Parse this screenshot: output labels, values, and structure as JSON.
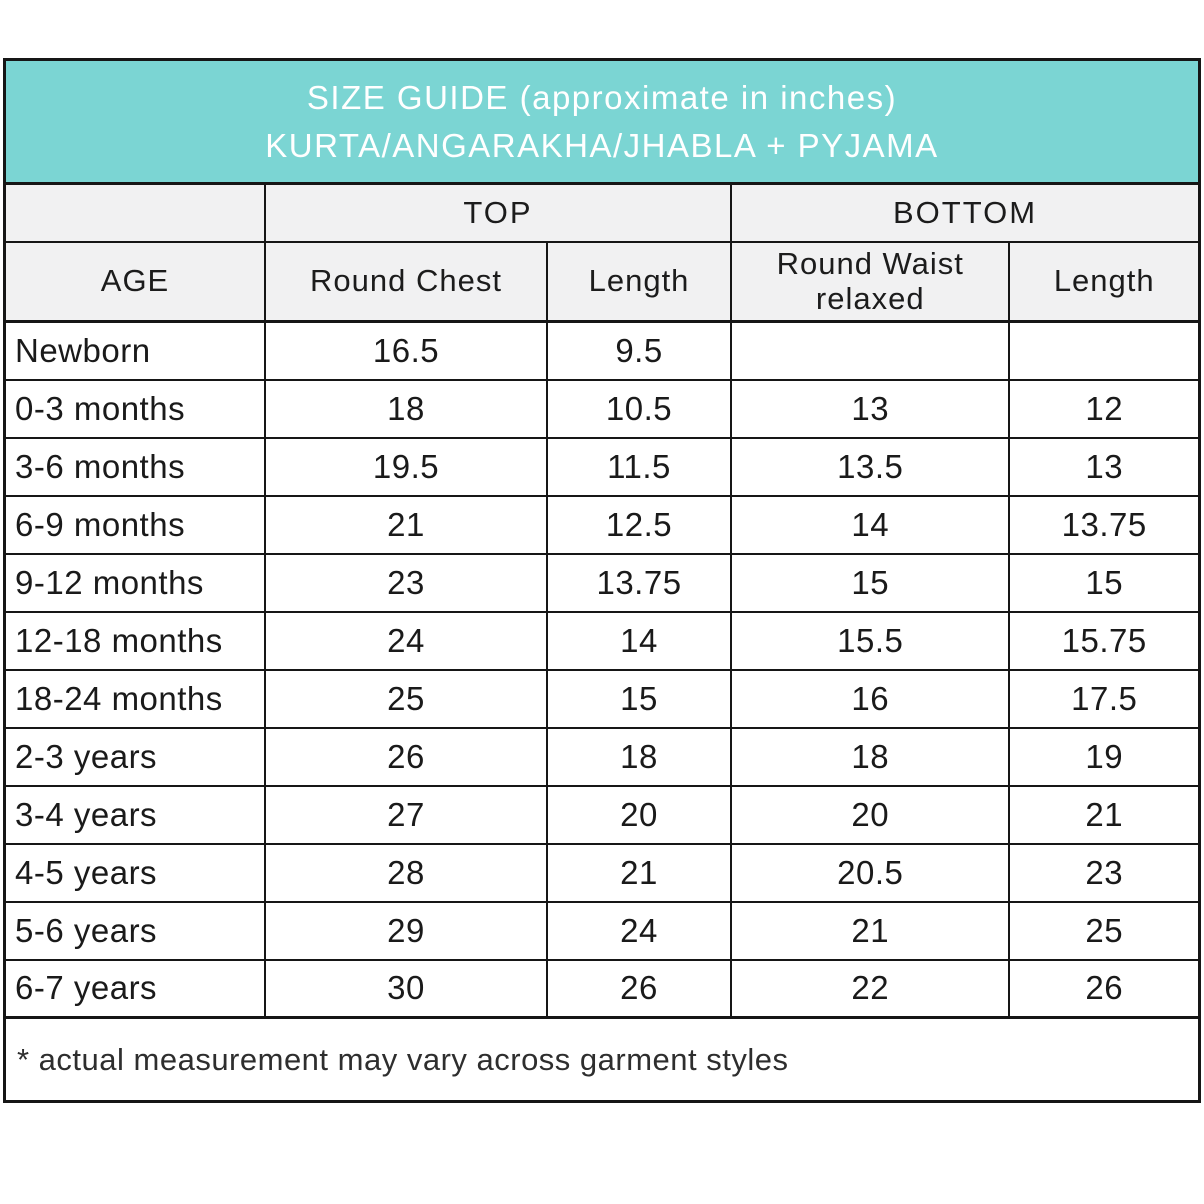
{
  "banner": {
    "line1": "SIZE GUIDE (approximate in inches)",
    "line2": "KURTA/ANGARAKHA/JHABLA + PYJAMA",
    "background_color": "#7bd5d3",
    "text_color": "#ffffff"
  },
  "table": {
    "group_headers": {
      "top": "TOP",
      "bottom": "BOTTOM"
    },
    "column_headers": [
      "AGE",
      "Round Chest",
      "Length",
      "Round Waist relaxed",
      "Length"
    ],
    "rows": [
      {
        "age": "Newborn",
        "values": [
          "16.5",
          "9.5",
          "",
          ""
        ]
      },
      {
        "age": "0-3 months",
        "values": [
          "18",
          "10.5",
          "13",
          "12"
        ]
      },
      {
        "age": "3-6 months",
        "values": [
          "19.5",
          "11.5",
          "13.5",
          "13"
        ]
      },
      {
        "age": "6-9 months",
        "values": [
          "21",
          "12.5",
          "14",
          "13.75"
        ]
      },
      {
        "age": "9-12 months",
        "values": [
          "23",
          "13.75",
          "15",
          "15"
        ]
      },
      {
        "age": "12-18 months",
        "values": [
          "24",
          "14",
          "15.5",
          "15.75"
        ]
      },
      {
        "age": "18-24 months",
        "values": [
          "25",
          "15",
          "16",
          "17.5"
        ]
      },
      {
        "age": "2-3 years",
        "values": [
          "26",
          "18",
          "18",
          "19"
        ]
      },
      {
        "age": "3-4 years",
        "values": [
          "27",
          "20",
          "20",
          "21"
        ]
      },
      {
        "age": "4-5 years",
        "values": [
          "28",
          "21",
          "20.5",
          "23"
        ]
      },
      {
        "age": "5-6 years",
        "values": [
          "29",
          "24",
          "21",
          "25"
        ]
      },
      {
        "age": "6-7 years",
        "values": [
          "30",
          "26",
          "22",
          "26"
        ]
      }
    ]
  },
  "footnote": "* actual measurement may vary across garment styles",
  "colors": {
    "banner_teal": "#7bd5d3",
    "header_gray": "#f1f1f2",
    "border_black": "#161616",
    "background_white": "#ffffff"
  },
  "chart_data": {
    "type": "table",
    "title": "SIZE GUIDE (approximate in inches) KURTA/ANGARAKHA/JHABLA + PYJAMA",
    "column_groups": [
      {
        "label": "",
        "columns": [
          "AGE"
        ]
      },
      {
        "label": "TOP",
        "columns": [
          "Round Chest",
          "Length"
        ]
      },
      {
        "label": "BOTTOM",
        "columns": [
          "Round Waist relaxed",
          "Length"
        ]
      }
    ],
    "columns": [
      "AGE",
      "TOP Round Chest",
      "TOP Length",
      "BOTTOM Round Waist relaxed",
      "BOTTOM Length"
    ],
    "rows": [
      [
        "Newborn",
        16.5,
        9.5,
        null,
        null
      ],
      [
        "0-3 months",
        18,
        10.5,
        13,
        12
      ],
      [
        "3-6 months",
        19.5,
        11.5,
        13.5,
        13
      ],
      [
        "6-9 months",
        21,
        12.5,
        14,
        13.75
      ],
      [
        "9-12 months",
        23,
        13.75,
        15,
        15
      ],
      [
        "12-18 months",
        24,
        14,
        15.5,
        15.75
      ],
      [
        "18-24 months",
        25,
        15,
        16,
        17.5
      ],
      [
        "2-3 years",
        26,
        18,
        18,
        19
      ],
      [
        "3-4 years",
        27,
        20,
        20,
        21
      ],
      [
        "4-5 years",
        28,
        21,
        20.5,
        23
      ],
      [
        "5-6 years",
        29,
        24,
        21,
        25
      ],
      [
        "6-7 years",
        30,
        26,
        22,
        26
      ]
    ],
    "footnote": "* actual measurement may vary across garment styles",
    "units": "inches"
  }
}
